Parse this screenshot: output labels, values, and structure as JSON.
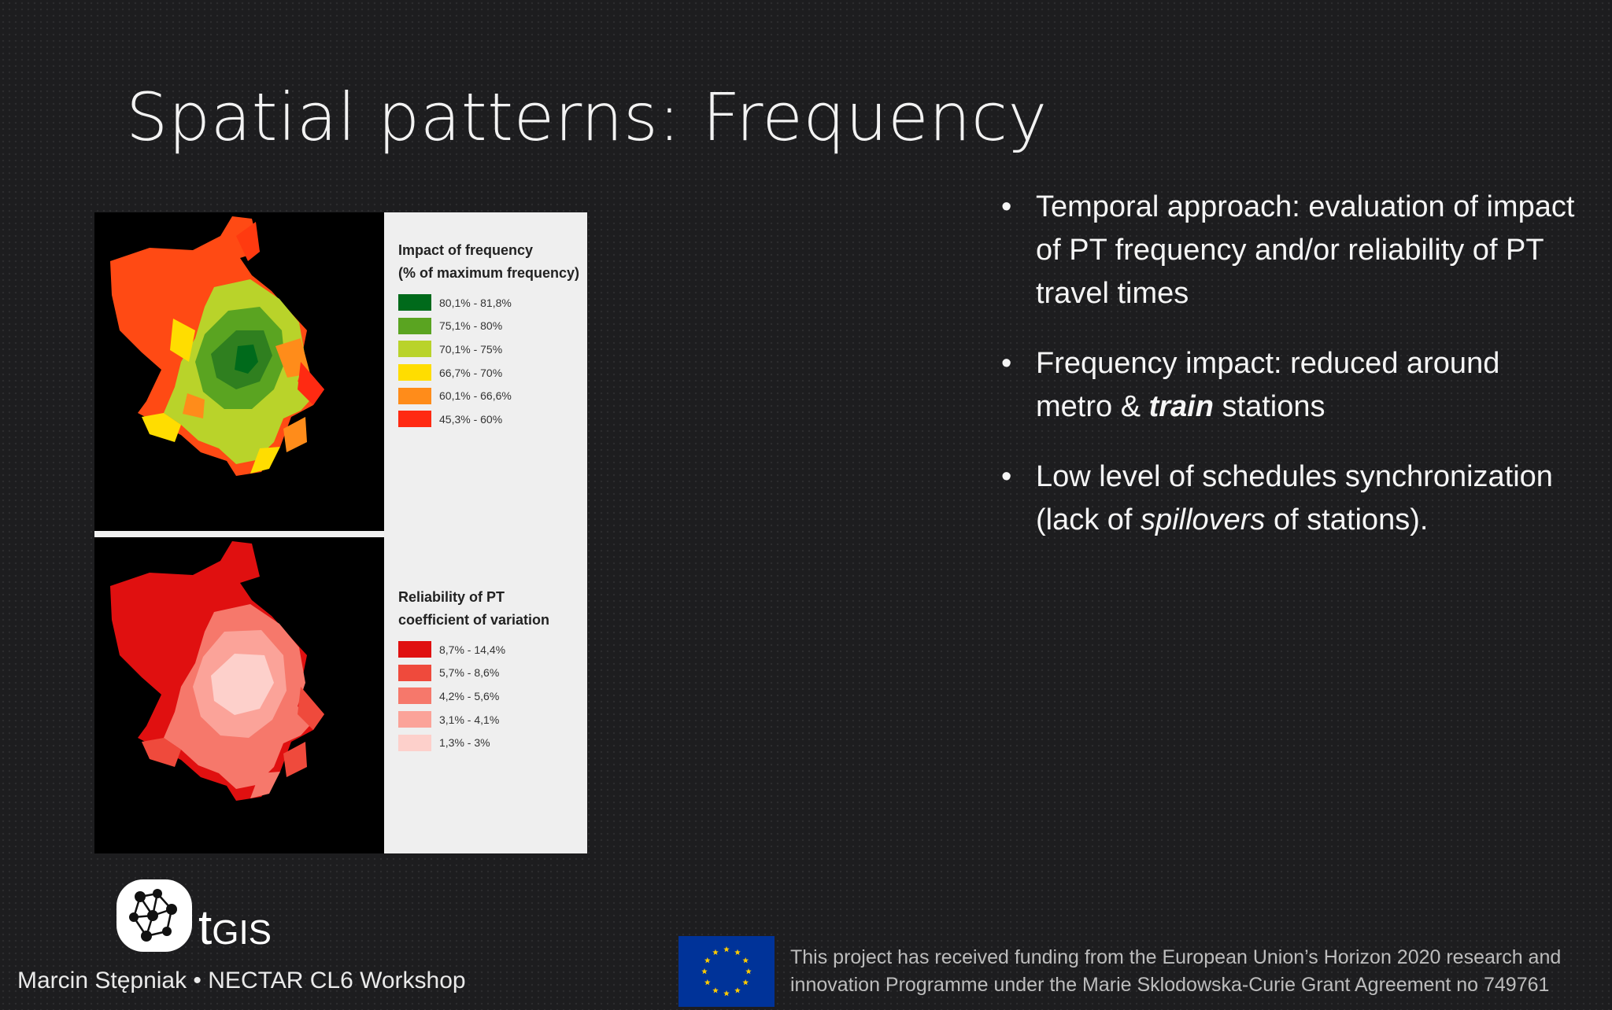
{
  "slide": {
    "title": "Spatial patterns: Frequency"
  },
  "figure": {
    "legend_frequency": {
      "title_line1": "Impact of frequency",
      "title_line2": "(% of maximum frequency)",
      "items": [
        {
          "label": "80,1% - 81,8%",
          "color": "#006a1b"
        },
        {
          "label": "75,1% - 80%",
          "color": "#5aa421"
        },
        {
          "label": "70,1% - 75%",
          "color": "#b9d32a"
        },
        {
          "label": "66,7% - 70%",
          "color": "#ffdd00"
        },
        {
          "label": "60,1% - 66,6%",
          "color": "#ff8c1a"
        },
        {
          "label": "45,3% - 60%",
          "color": "#ff2a12"
        }
      ]
    },
    "legend_reliability": {
      "title_line1": "Reliability of PT",
      "title_line2": "coefficient of variation",
      "items": [
        {
          "label": "8,7% - 14,4%",
          "color": "#e01010"
        },
        {
          "label": "5,7% - 8,6%",
          "color": "#ef4a3c"
        },
        {
          "label": "4,2% - 5,6%",
          "color": "#f6786b"
        },
        {
          "label": "3,1% - 4,1%",
          "color": "#fba399"
        },
        {
          "label": "1,3% - 3%",
          "color": "#fdd0cb"
        }
      ]
    }
  },
  "bullets": [
    {
      "text": "Temporal approach: evaluation of impact of PT frequency and/or reliability of PT travel times"
    },
    {
      "before": "Frequency impact: reduced around metro & ",
      "emph": "train",
      "after": " stations"
    },
    {
      "before": "Low level of schedules synchronization (lack of ",
      "emph": "spillovers",
      "after": " of stations)."
    }
  ],
  "logo": {
    "letter": "t",
    "rest": "GIS"
  },
  "footer": {
    "author": "Marcin Stępniak • NECTAR CL6 Workshop",
    "funding_line1": "This project has received funding from the European Union’s Horizon 2020 research and",
    "funding_line2": "innovation Programme under the Marie Sklodowska-Curie Grant Agreement no 749761"
  }
}
